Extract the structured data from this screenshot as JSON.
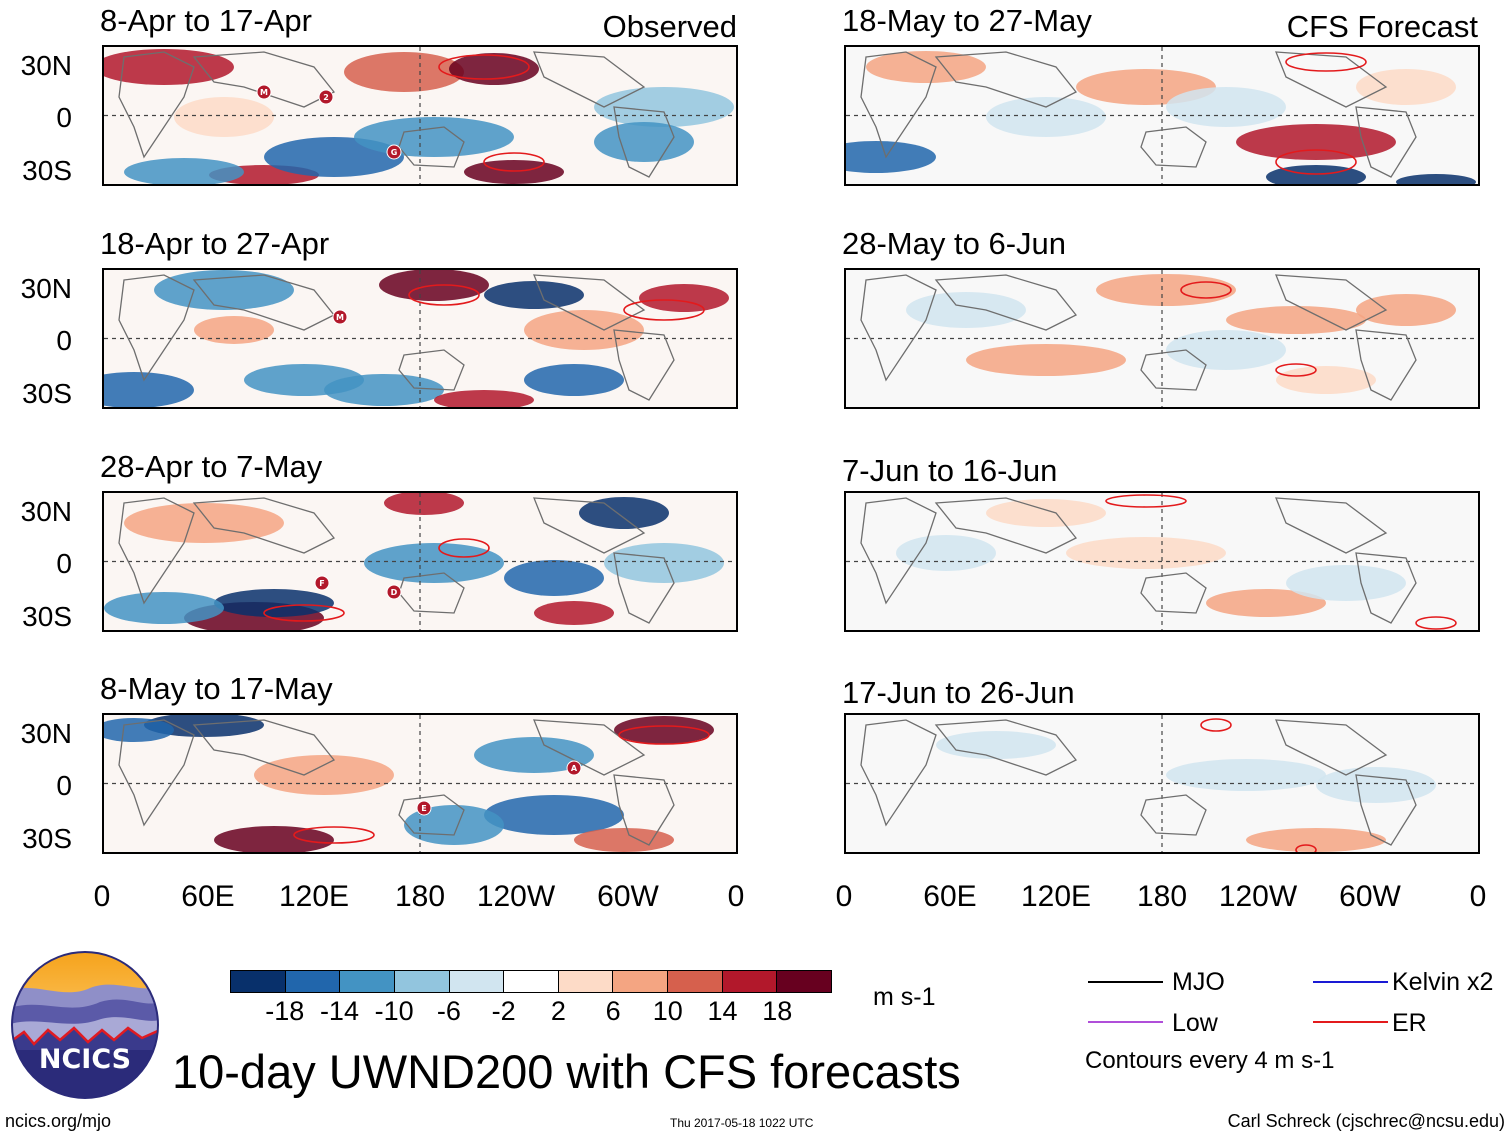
{
  "header": {
    "observed_label": "Observed",
    "forecast_label": "CFS Forecast"
  },
  "observed_panels": [
    {
      "title": "8-Apr to 17-Apr"
    },
    {
      "title": "18-Apr to 27-Apr"
    },
    {
      "title": "28-Apr to 7-May"
    },
    {
      "title": "8-May to 17-May"
    }
  ],
  "forecast_panels": [
    {
      "title": "18-May to 27-May"
    },
    {
      "title": "28-May to 6-Jun"
    },
    {
      "title": "7-Jun to 16-Jun"
    },
    {
      "title": "17-Jun to 26-Jun"
    }
  ],
  "lat_ticks": [
    "30N",
    "0",
    "30S"
  ],
  "lon_ticks": [
    "0",
    "60E",
    "120E",
    "180",
    "120W",
    "60W",
    "0"
  ],
  "storm_markers": {
    "panel_1": [
      "M",
      "2",
      "G"
    ],
    "panel_2": [
      "M"
    ],
    "panel_3": [
      "F",
      "D"
    ],
    "panel_4": [
      "A",
      "E"
    ]
  },
  "colorbar": {
    "ticks": [
      "-18",
      "-14",
      "-10",
      "-6",
      "-2",
      "2",
      "6",
      "10",
      "14",
      "18"
    ],
    "units": "m s-1",
    "colors": [
      "#08306b",
      "#2166ac",
      "#4393c3",
      "#92c5de",
      "#d1e5f0",
      "#ffffff",
      "#fddbc7",
      "#f4a582",
      "#d6604d",
      "#b2182b",
      "#67001f"
    ]
  },
  "contour_key": {
    "items": [
      {
        "label": "MJO",
        "color": "#000000"
      },
      {
        "label": "Kelvin x2",
        "color": "#1a1ad4"
      },
      {
        "label": "Low",
        "color": "#b04fd9"
      },
      {
        "label": "ER",
        "color": "#e31a1c"
      }
    ],
    "note": "Contours every 4 m s-1"
  },
  "title": "10-day UWND200 with CFS forecasts",
  "logo": {
    "text": "NCICS"
  },
  "footer": {
    "url": "ncics.org/mjo",
    "timestamp": "Thu 2017-05-18 1022 UTC",
    "author": "Carl Schreck (cjschrec@ncsu.edu)"
  }
}
